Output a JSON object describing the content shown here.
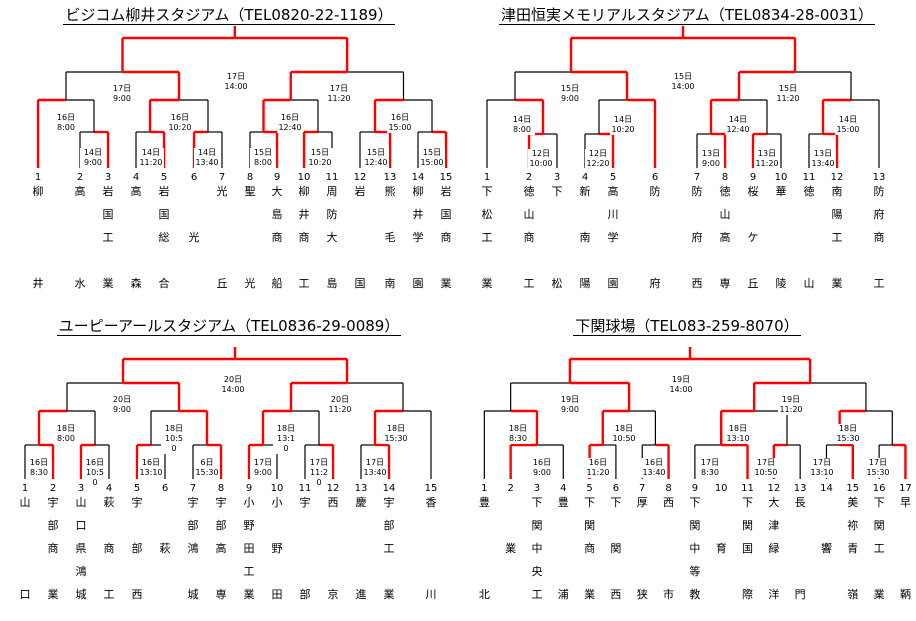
{
  "colors": {
    "win": "#ff0000",
    "line": "#000000"
  },
  "brackets": [
    {
      "title": "ビジコム柳井スタジアム（TEL0820-22-1189）",
      "finals": [
        "17日\n14:00"
      ],
      "semis": [
        "17日\n9:00",
        "17日\n11:20"
      ],
      "r2": [
        "16日\n8:00",
        "16日\n10:20",
        "16日\n12:40",
        "16日\n15:00"
      ],
      "r1": [
        "14日\n9:00",
        "14日\n11:20",
        "14日\n13:40",
        "15日\n8:00",
        "15日\n10:20",
        "15日\n12:40",
        "15日\n15:00"
      ],
      "teams": [
        {
          "n": "1",
          "c": [
            "柳",
            "",
            "",
            "",
            "井"
          ]
        },
        {
          "n": "2",
          "c": [
            "高",
            "",
            "",
            "",
            "水"
          ]
        },
        {
          "n": "3",
          "c": [
            "岩",
            "国",
            "工",
            "",
            "業"
          ]
        },
        {
          "n": "4",
          "c": [
            "高",
            "",
            "",
            "",
            "森"
          ]
        },
        {
          "n": "5",
          "c": [
            "岩",
            "国",
            "総",
            "",
            "合"
          ]
        },
        {
          "n": "6",
          "c": [
            "",
            "",
            "光",
            "",
            ""
          ]
        },
        {
          "n": "7",
          "c": [
            "光",
            "",
            "",
            "",
            "丘"
          ]
        },
        {
          "n": "8",
          "c": [
            "聖",
            "",
            "",
            "",
            "光"
          ]
        },
        {
          "n": "9",
          "c": [
            "大",
            "島",
            "商",
            "",
            "船"
          ]
        },
        {
          "n": "10",
          "c": [
            "柳",
            "井",
            "商",
            "",
            "工"
          ]
        },
        {
          "n": "11",
          "c": [
            "周",
            "防",
            "大",
            "",
            "島"
          ]
        },
        {
          "n": "12",
          "c": [
            "岩",
            "",
            "",
            "",
            "国"
          ]
        },
        {
          "n": "13",
          "c": [
            "熊",
            "",
            "毛",
            "",
            "南"
          ]
        },
        {
          "n": "14",
          "c": [
            "柳",
            "井",
            "学",
            "",
            "園"
          ]
        },
        {
          "n": "15",
          "c": [
            "岩",
            "国",
            "商",
            "",
            "業"
          ]
        }
      ]
    },
    {
      "title": "津田恒実メモリアルスタジアム（TEL0834-28-0031）",
      "finals": [
        "15日\n14:00"
      ],
      "semis": [
        "15日\n9:00",
        "15日\n11:20"
      ],
      "r2": [
        "14日\n8:00",
        "14日\n10:20",
        "14日\n12:40",
        "14日\n15:00"
      ],
      "r1": [
        "12日\n10:00",
        "12日\n12:20",
        "13日\n9:00",
        "13日\n11:20",
        "13日\n13:40"
      ],
      "teams": [
        {
          "n": "1",
          "c": [
            "下",
            "松",
            "工",
            "",
            "業"
          ]
        },
        {
          "n": "2",
          "c": [
            "徳",
            "山",
            "商",
            "",
            "工"
          ]
        },
        {
          "n": "3",
          "c": [
            "下",
            "",
            "",
            "",
            "松"
          ]
        },
        {
          "n": "4",
          "c": [
            "新",
            "",
            "南",
            "",
            "陽"
          ]
        },
        {
          "n": "5",
          "c": [
            "高",
            "川",
            "学",
            "",
            "園"
          ]
        },
        {
          "n": "6",
          "c": [
            "防",
            "",
            "",
            "",
            "府"
          ]
        },
        {
          "n": "7",
          "c": [
            "防",
            "",
            "府",
            "",
            "西"
          ]
        },
        {
          "n": "8",
          "c": [
            "徳",
            "山",
            "高",
            "",
            "専"
          ]
        },
        {
          "n": "9",
          "c": [
            "桜",
            "",
            "ケ",
            "",
            "丘"
          ]
        },
        {
          "n": "10",
          "c": [
            "華",
            "",
            "",
            "",
            "陵"
          ]
        },
        {
          "n": "11",
          "c": [
            "徳",
            "",
            "",
            "",
            "山"
          ]
        },
        {
          "n": "12",
          "c": [
            "南",
            "陽",
            "工",
            "",
            "業"
          ]
        },
        {
          "n": "13",
          "c": [
            "防",
            "府",
            "商",
            "",
            "工"
          ]
        }
      ]
    },
    {
      "title": "ユーピーアールスタジアム（TEL0836-29-0089）",
      "finals": [
        "20日\n14:00"
      ],
      "semis": [
        "20日\n9:00",
        "20日\n11:20"
      ],
      "r2": [
        "18日\n8:00",
        "18日\n10:5\n0",
        "18日\n13:1\n0",
        "18日\n15:30"
      ],
      "r1": [
        "16日\n8:30",
        "16日\n10:5\n0",
        "16日\n13:10",
        "6日\n15:30",
        "17日\n9:00",
        "17日\n11:2\n0",
        "17日\n13:40"
      ],
      "teams": [
        {
          "n": "1",
          "c": [
            "山",
            "",
            "",
            "",
            "口"
          ]
        },
        {
          "n": "2",
          "c": [
            "宇",
            "部",
            "商",
            "",
            "業"
          ]
        },
        {
          "n": "3",
          "c": [
            "山",
            "口",
            "県",
            "鴻",
            "城"
          ]
        },
        {
          "n": "4",
          "c": [
            "萩",
            "",
            "商",
            "",
            "工"
          ]
        },
        {
          "n": "5",
          "c": [
            "宇",
            "",
            "部",
            "",
            "西"
          ]
        },
        {
          "n": "6",
          "c": [
            "",
            "",
            "萩",
            "",
            ""
          ]
        },
        {
          "n": "7",
          "c": [
            "宇",
            "部",
            "鴻",
            "",
            "城"
          ]
        },
        {
          "n": "8",
          "c": [
            "宇",
            "部",
            "高",
            "",
            "専"
          ]
        },
        {
          "n": "9",
          "c": [
            "小",
            "野",
            "田",
            "工",
            "業"
          ]
        },
        {
          "n": "10",
          "c": [
            "小",
            "",
            "野",
            "",
            "田"
          ]
        },
        {
          "n": "11",
          "c": [
            "宇",
            "",
            "",
            "",
            "部"
          ]
        },
        {
          "n": "12",
          "c": [
            "西",
            "",
            "",
            "",
            "京"
          ]
        },
        {
          "n": "13",
          "c": [
            "慶",
            "",
            "",
            "",
            "進"
          ]
        },
        {
          "n": "14",
          "c": [
            "宇",
            "部",
            "工",
            "",
            "業"
          ]
        },
        {
          "n": "15",
          "c": [
            "香",
            "",
            "",
            "",
            "川"
          ]
        }
      ]
    },
    {
      "title": "下関球場（TEL083-259-8070）",
      "finals": [
        "19日\n14:00"
      ],
      "semis": [
        "19日\n9:00",
        "19日\n11:20"
      ],
      "r2": [
        "18日\n8:30",
        "18日\n10:50",
        "18日\n13:10",
        "18日\n15:30"
      ],
      "r1": [
        "16日\n9:00",
        "16日\n11:20",
        "16日\n13:40",
        "17日\n8:30",
        "17日\n10:50",
        "17日\n13:10",
        "17日\n15:30"
      ],
      "teams": [
        {
          "n": "1",
          "c": [
            "豊",
            "",
            "",
            "",
            "北"
          ]
        },
        {
          "n": "2",
          "c": [
            "",
            "",
            "業",
            "",
            ""
          ]
        },
        {
          "n": "3",
          "c": [
            "下",
            "関",
            "中",
            "央",
            "工"
          ]
        },
        {
          "n": "4",
          "c": [
            "豊",
            "",
            "",
            "",
            "浦"
          ]
        },
        {
          "n": "5",
          "c": [
            "下",
            "関",
            "商",
            "",
            "業"
          ]
        },
        {
          "n": "6",
          "c": [
            "下",
            "",
            "関",
            "",
            "西"
          ]
        },
        {
          "n": "7",
          "c": [
            "厚",
            "",
            "",
            "",
            "狭"
          ]
        },
        {
          "n": "8",
          "c": [
            "西",
            "",
            "",
            "",
            "市"
          ]
        },
        {
          "n": "9",
          "c": [
            "下",
            "関",
            "中",
            "等",
            "教"
          ]
        },
        {
          "n": "10",
          "c": [
            "",
            "",
            "育",
            "",
            ""
          ]
        },
        {
          "n": "11",
          "c": [
            "下",
            "関",
            "国",
            "",
            "際"
          ]
        },
        {
          "n": "12",
          "c": [
            "大",
            "津",
            "緑",
            "",
            "洋"
          ]
        },
        {
          "n": "13",
          "c": [
            "長",
            "",
            "",
            "",
            "門"
          ]
        },
        {
          "n": "14",
          "c": [
            "",
            "",
            "響",
            "",
            ""
          ]
        },
        {
          "n": "15",
          "c": [
            "美",
            "祢",
            "青",
            "",
            "嶺"
          ]
        },
        {
          "n": "16",
          "c": [
            "下",
            "関",
            "工",
            "",
            "業"
          ]
        },
        {
          "n": "17",
          "c": [
            "早",
            "",
            "",
            "",
            "鞆"
          ]
        }
      ]
    }
  ]
}
